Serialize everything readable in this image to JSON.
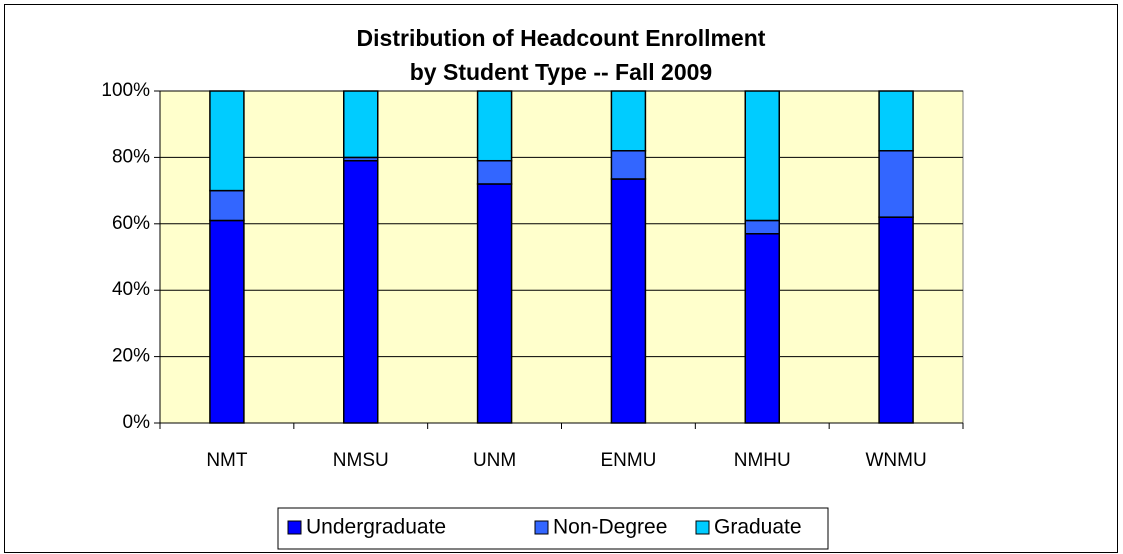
{
  "chart_data": {
    "type": "stacked_bar",
    "title": [
      "Distribution of Headcount Enrollment",
      "by Student Type -- Fall 2009"
    ],
    "categories": [
      "NMT",
      "NMSU",
      "UNM",
      "ENMU",
      "NMHU",
      "WNMU"
    ],
    "series": [
      {
        "name": "Undergraduate",
        "color": "#0000FF",
        "values": [
          61,
          79,
          72,
          73.5,
          57,
          62
        ]
      },
      {
        "name": "Non-Degree",
        "color": "#3366FF",
        "values": [
          9,
          1,
          7,
          8.5,
          4,
          20
        ]
      },
      {
        "name": "Graduate",
        "color": "#00CCFF",
        "values": [
          30,
          20,
          21,
          18,
          39,
          18
        ]
      }
    ],
    "ylim": [
      0,
      100
    ],
    "yticks": [
      {
        "value": 0,
        "label": "0%"
      },
      {
        "value": 20,
        "label": "20%"
      },
      {
        "value": 40,
        "label": "40%"
      },
      {
        "value": 60,
        "label": "60%"
      },
      {
        "value": 80,
        "label": "80%"
      },
      {
        "value": 100,
        "label": "100%"
      }
    ],
    "grid": true,
    "legend": "bottom"
  }
}
